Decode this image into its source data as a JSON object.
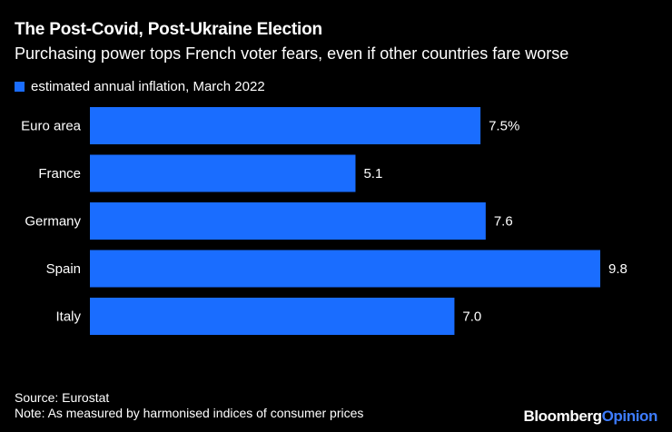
{
  "header": {
    "title": "The Post-Covid, Post-Ukraine Election",
    "subtitle": "Purchasing power tops French voter fears, even if other countries fare worse"
  },
  "legend": {
    "label": "estimated annual inflation, March 2022"
  },
  "colors": {
    "background": "#000000",
    "bar": "#1a6dff",
    "text": "#ffffff",
    "brand_accent": "#3d7cff"
  },
  "chart_data": {
    "type": "bar",
    "orientation": "horizontal",
    "title": "The Post-Covid, Post-Ukraine Election",
    "subtitle": "Purchasing power tops French voter fears, even if other countries fare worse",
    "categories": [
      "Euro area",
      "France",
      "Germany",
      "Spain",
      "Italy"
    ],
    "series": [
      {
        "name": "estimated annual inflation, March 2022",
        "values": [
          7.5,
          5.1,
          7.6,
          9.8,
          7.0
        ],
        "labels": [
          "7.5%",
          "5.1",
          "7.6",
          "9.8",
          "7.0"
        ]
      }
    ],
    "xlim": [
      0,
      9.8
    ],
    "xlabel": "",
    "ylabel": "",
    "grid": false
  },
  "footer": {
    "source": "Source: Eurostat",
    "note": "Note: As measured by harmonised indices of consumer prices",
    "brand_main": "Bloomberg",
    "brand_accent": "Opinion"
  }
}
